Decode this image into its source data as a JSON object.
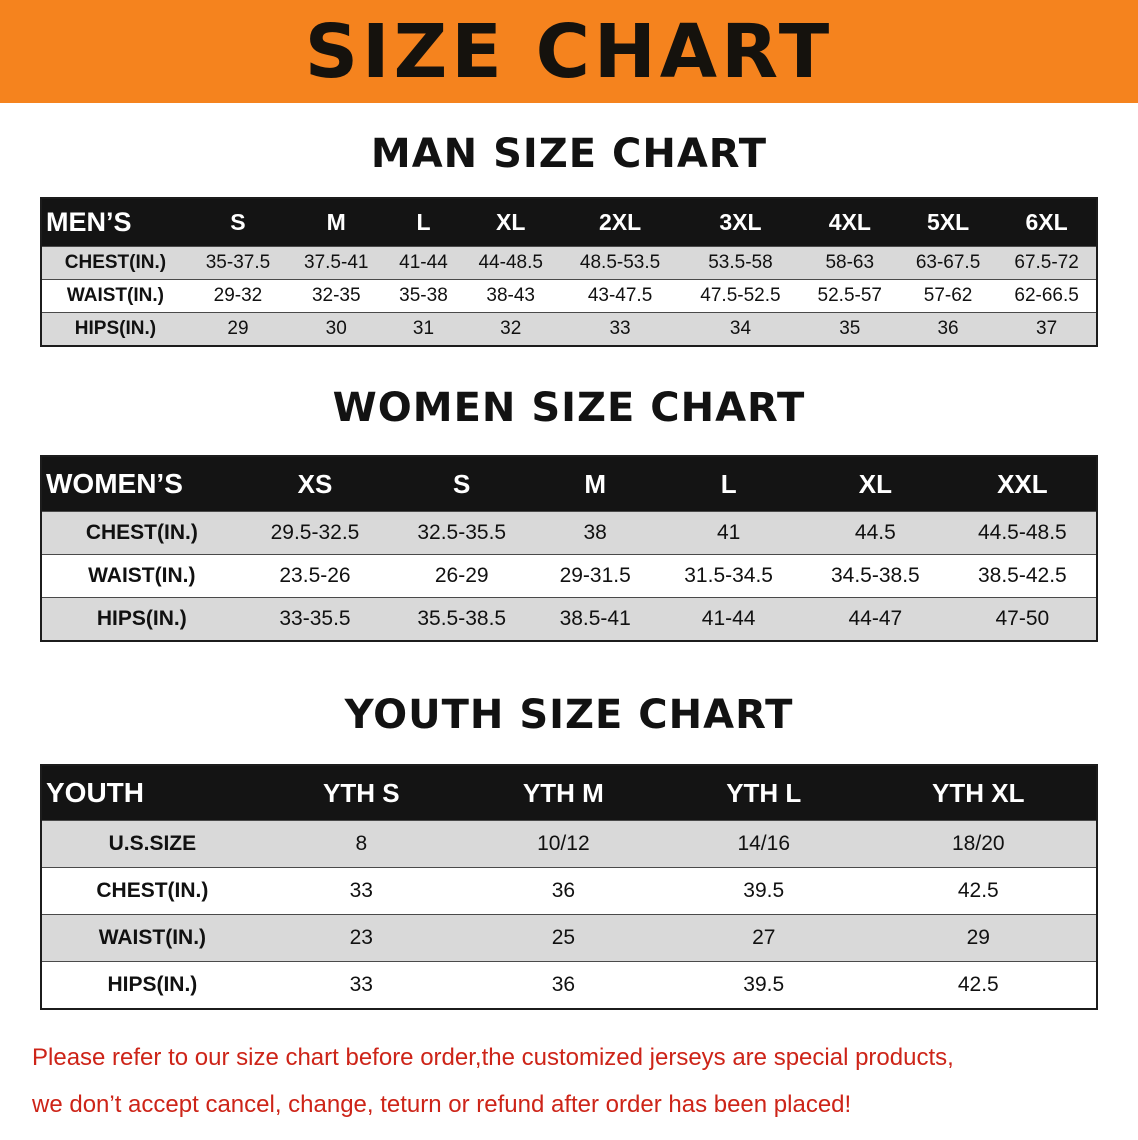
{
  "banner": {
    "title": "SIZE CHART"
  },
  "colors": {
    "banner_bg": "#F5831E",
    "header_bg": "#141414",
    "row_shade": "#D9D9D9",
    "notice_text": "#CD2418"
  },
  "sections": [
    {
      "id": "men",
      "heading": "MAN SIZE CHART",
      "table": {
        "header": [
          "MEN’S",
          "S",
          "M",
          "L",
          "XL",
          "2XL",
          "3XL",
          "4XL",
          "5XL",
          "6XL"
        ],
        "rows": [
          {
            "label": "CHEST(IN.)",
            "values": [
              "35-37.5",
              "37.5-41",
              "41-44",
              "44-48.5",
              "48.5-53.5",
              "53.5-58",
              "58-63",
              "63-67.5",
              "67.5-72"
            ]
          },
          {
            "label": "WAIST(IN.)",
            "values": [
              "29-32",
              "32-35",
              "35-38",
              "38-43",
              "43-47.5",
              "47.5-52.5",
              "52.5-57",
              "57-62",
              "62-66.5"
            ]
          },
          {
            "label": "HIPS(IN.)",
            "values": [
              "29",
              "30",
              "31",
              "32",
              "33",
              "34",
              "35",
              "36",
              "37"
            ]
          }
        ]
      }
    },
    {
      "id": "women",
      "heading": "WOMEN SIZE CHART",
      "table": {
        "header": [
          "WOMEN’S",
          "XS",
          "S",
          "M",
          "L",
          "XL",
          "XXL"
        ],
        "rows": [
          {
            "label": "CHEST(IN.)",
            "values": [
              "29.5-32.5",
              "32.5-35.5",
              "38",
              "41",
              "44.5",
              "44.5-48.5"
            ]
          },
          {
            "label": "WAIST(IN.)",
            "values": [
              "23.5-26",
              "26-29",
              "29-31.5",
              "31.5-34.5",
              "34.5-38.5",
              "38.5-42.5"
            ]
          },
          {
            "label": "HIPS(IN.)",
            "values": [
              "33-35.5",
              "35.5-38.5",
              "38.5-41",
              "41-44",
              "44-47",
              "47-50"
            ]
          }
        ]
      }
    },
    {
      "id": "youth",
      "heading": "YOUTH SIZE CHART",
      "table": {
        "header": [
          "YOUTH",
          "YTH S",
          "YTH M",
          "YTH L",
          "YTH XL"
        ],
        "rows": [
          {
            "label": "U.S.SIZE",
            "values": [
              "8",
              "10/12",
              "14/16",
              "18/20"
            ]
          },
          {
            "label": "CHEST(IN.)",
            "values": [
              "33",
              "36",
              "39.5",
              "42.5"
            ]
          },
          {
            "label": "WAIST(IN.)",
            "values": [
              "23",
              "25",
              "27",
              "29"
            ]
          },
          {
            "label": "HIPS(IN.)",
            "values": [
              "33",
              "36",
              "39.5",
              "42.5"
            ]
          }
        ]
      }
    }
  ],
  "footer": {
    "line1": "Please refer to our size chart before order,the customized jerseys are special products,",
    "line2": "we don’t accept cancel, change, teturn or refund after order has been placed!"
  }
}
